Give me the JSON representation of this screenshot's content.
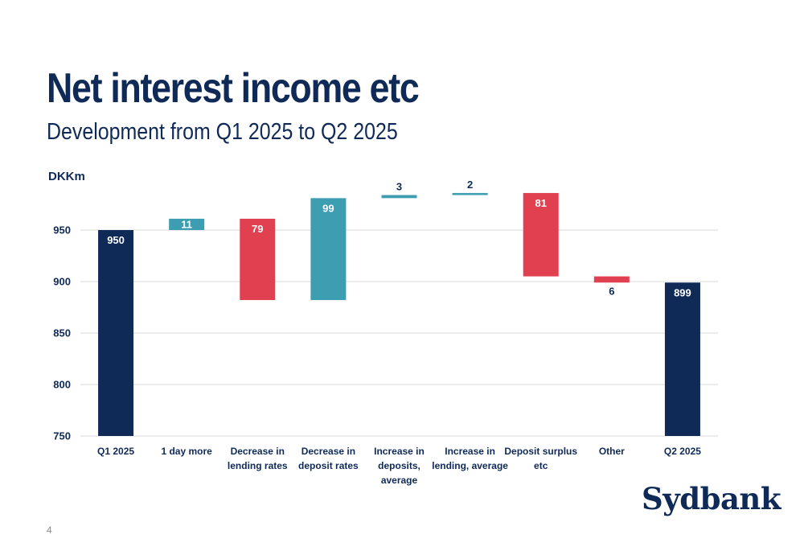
{
  "slide": {
    "title": "Net interest income etc",
    "subtitle": "Development from Q1 2025 to Q2 2025",
    "unit_label": "DKKm",
    "logo_text": "Sydbank",
    "page_number": "4"
  },
  "colors": {
    "total": "#0f2a57",
    "increase": "#3d9eb1",
    "decrease": "#e04050",
    "text": "#0f2a57",
    "grid": "#d9d9d9"
  },
  "chart_data": {
    "type": "bar",
    "subtype": "waterfall",
    "ylabel": "DKKm",
    "ylim": [
      750,
      1000
    ],
    "yticks": [
      750,
      800,
      850,
      900,
      950
    ],
    "grid": true,
    "categories": [
      [
        "Q1 2025"
      ],
      [
        "1 day more"
      ],
      [
        "Decrease in",
        "lending rates"
      ],
      [
        "Decrease in",
        "deposit rates"
      ],
      [
        "Increase in",
        "deposits,",
        "average"
      ],
      [
        "Increase in",
        "lending, average"
      ],
      [
        "Deposit surplus",
        "etc"
      ],
      [
        "Other"
      ],
      [
        "Q2 2025"
      ]
    ],
    "bars": [
      {
        "kind": "total",
        "start": 0,
        "end": 950,
        "label": "950"
      },
      {
        "kind": "increase",
        "start": 950,
        "end": 961,
        "label": "11"
      },
      {
        "kind": "decrease",
        "start": 961,
        "end": 882,
        "label": "79"
      },
      {
        "kind": "increase",
        "start": 882,
        "end": 981,
        "label": "99"
      },
      {
        "kind": "increase",
        "start": 981,
        "end": 984,
        "label": "3"
      },
      {
        "kind": "increase",
        "start": 984,
        "end": 986,
        "label": "2"
      },
      {
        "kind": "decrease",
        "start": 986,
        "end": 905,
        "label": "81"
      },
      {
        "kind": "decrease",
        "start": 905,
        "end": 899,
        "label": "6"
      },
      {
        "kind": "total",
        "start": 0,
        "end": 899,
        "label": "899"
      }
    ]
  }
}
